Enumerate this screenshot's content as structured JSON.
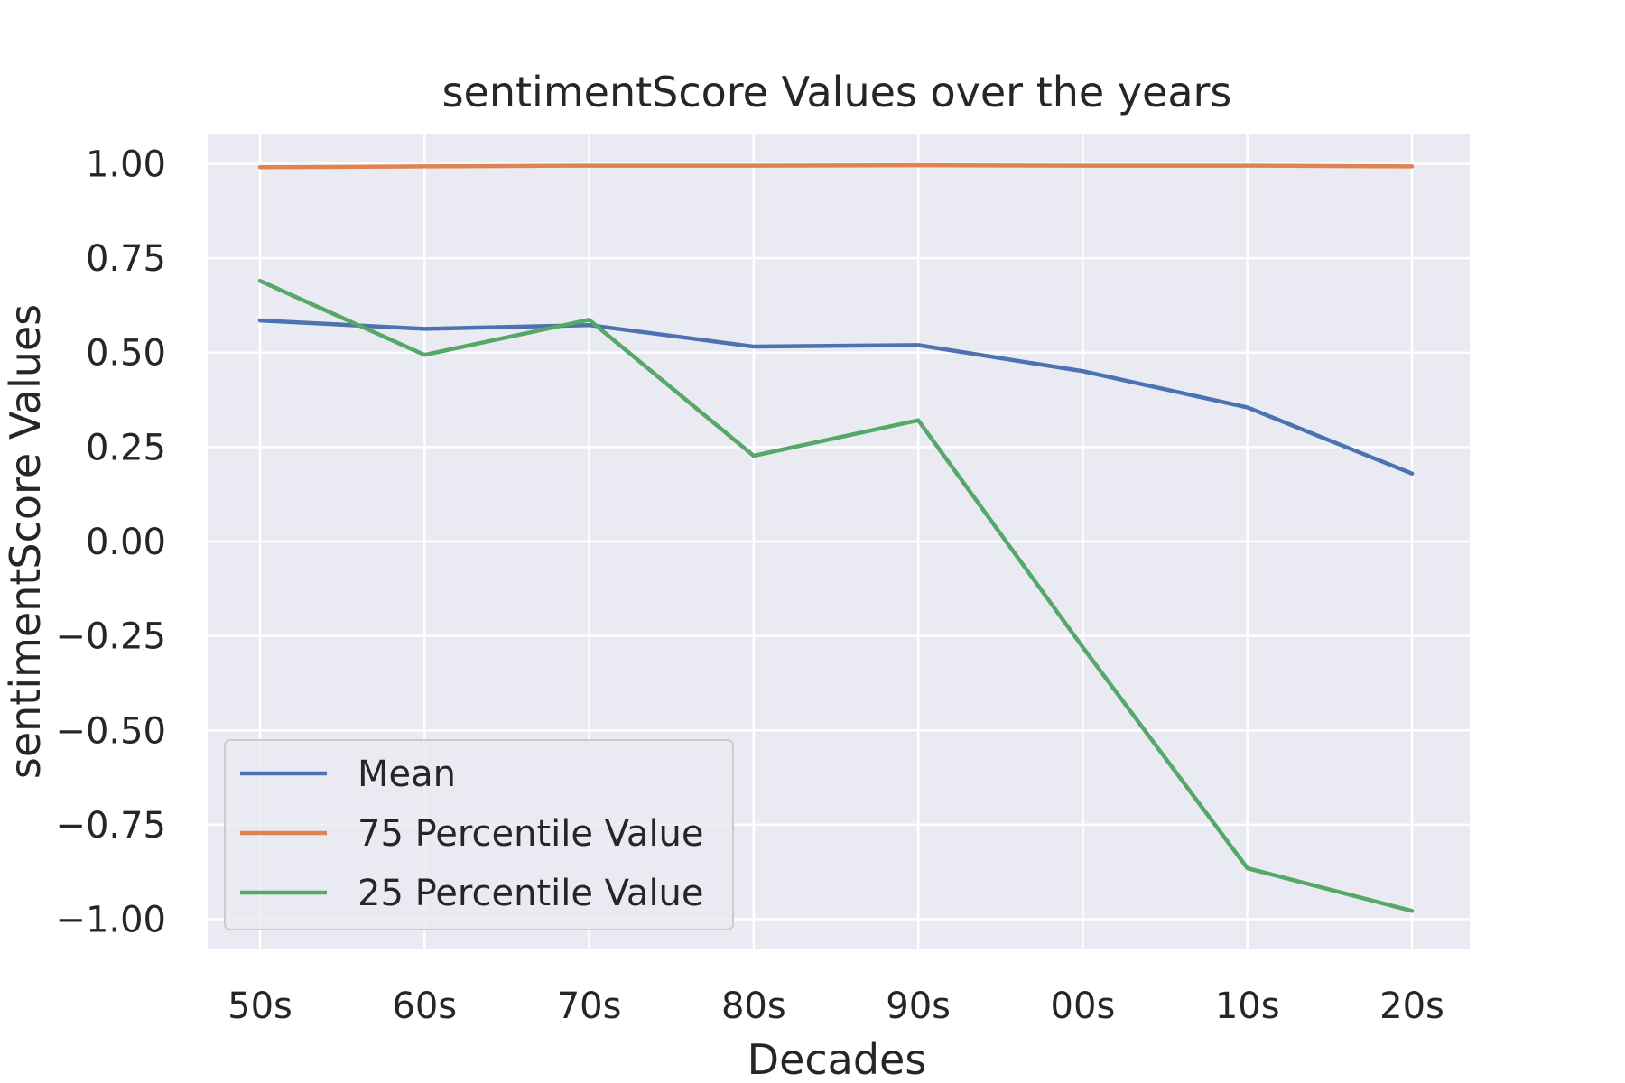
{
  "chart_data": {
    "type": "line",
    "title": "sentimentScore Values over the years",
    "xlabel": "Decades",
    "ylabel": "sentimentScore Values",
    "categories": [
      "50s",
      "60s",
      "70s",
      "80s",
      "90s",
      "00s",
      "10s",
      "20s"
    ],
    "ylim": [
      -1.08,
      1.08
    ],
    "yticks": [
      1.0,
      0.75,
      0.5,
      0.25,
      0.0,
      -0.25,
      -0.5,
      -0.75,
      -1.0
    ],
    "ytick_labels": [
      "1.00",
      "0.75",
      "0.50",
      "0.25",
      "0.00",
      "−0.25",
      "−0.50",
      "−0.75",
      "−1.00"
    ],
    "grid": true,
    "legend_position": "lower-left",
    "colors": {
      "background": "#eaeaf2",
      "grid": "#ffffff",
      "text": "#262626"
    },
    "series": [
      {
        "name": "Mean",
        "color": "#4c72b0",
        "values": [
          0.585,
          0.563,
          0.573,
          0.516,
          0.52,
          0.451,
          0.355,
          0.18
        ]
      },
      {
        "name": "75 Percentile Value",
        "color": "#dd8452",
        "values": [
          0.991,
          0.993,
          0.995,
          0.995,
          0.996,
          0.995,
          0.995,
          0.993
        ]
      },
      {
        "name": "25 Percentile Value",
        "color": "#55a868",
        "values": [
          0.69,
          0.494,
          0.587,
          0.227,
          0.321,
          -0.28,
          -0.865,
          -0.978
        ]
      }
    ]
  }
}
